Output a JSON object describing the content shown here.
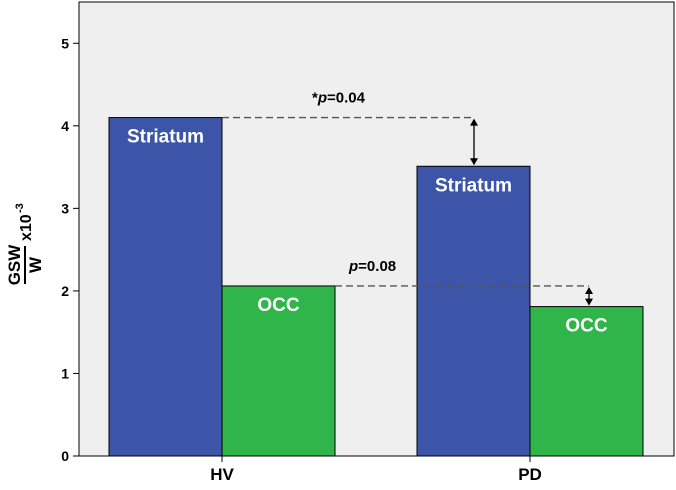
{
  "chart_data": {
    "type": "bar",
    "categories": [
      "HV",
      "PD"
    ],
    "series": [
      {
        "name": "Striatum",
        "values": [
          4.1,
          3.51
        ],
        "color": "#3c55a8"
      },
      {
        "name": "OCC",
        "values": [
          2.06,
          1.81
        ],
        "color": "#2fb54a"
      }
    ],
    "ylim": [
      0,
      5.5
    ],
    "yticks": [
      "0",
      "1",
      "2",
      "3",
      "4",
      "5"
    ],
    "ylabel": {
      "numerator": "GSW",
      "denominator": "W",
      "multiplier": "x10",
      "exponent": "-3"
    },
    "xlabel": "",
    "title": "",
    "grid": false,
    "legend": "none",
    "plot_background": "#efefef",
    "annotations": [
      {
        "prefix": "*",
        "p": "p",
        "text": "=0.04",
        "series": "Striatum"
      },
      {
        "prefix": "",
        "p": "p",
        "text": "=0.08",
        "series": "OCC"
      }
    ]
  }
}
